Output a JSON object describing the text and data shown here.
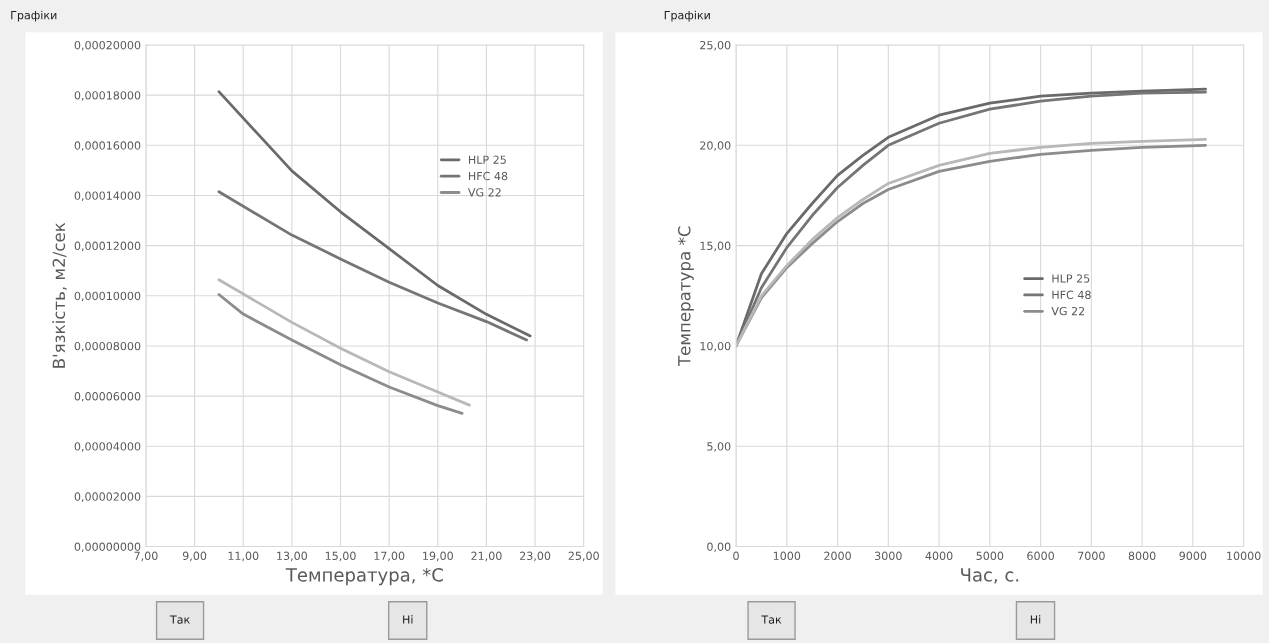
{
  "chart_data": [
    {
      "type": "line",
      "xlabel": "Температура, *С",
      "ylabel": "В'язкість, м2/сек",
      "annotations": [
        "Графіки",
        "Так",
        "Ні"
      ],
      "xlim": [
        7,
        25
      ],
      "xticks": [
        {
          "value": 7,
          "label": "7,00"
        },
        {
          "value": 9,
          "label": "9,00"
        },
        {
          "value": 11,
          "label": "11,00"
        },
        {
          "value": 13,
          "label": "13,00"
        },
        {
          "value": 15,
          "label": "15,00"
        },
        {
          "value": 17,
          "label": "17,00"
        },
        {
          "value": 19,
          "label": "19,00"
        },
        {
          "value": 21,
          "label": "21,00"
        },
        {
          "value": 23,
          "label": "23,00"
        },
        {
          "value": 25,
          "label": "25,00"
        }
      ],
      "ylim": [
        0,
        0.0002
      ],
      "yticks": [
        {
          "value": 0,
          "label": "0,00000000"
        },
        {
          "value": 2e-05,
          "label": "0,00002000"
        },
        {
          "value": 4e-05,
          "label": "0,00004000"
        },
        {
          "value": 6e-05,
          "label": "0,00006000"
        },
        {
          "value": 8e-05,
          "label": "0,00008000"
        },
        {
          "value": 0.0001,
          "label": "0,00010000"
        },
        {
          "value": 0.00012,
          "label": "0,00012000"
        },
        {
          "value": 0.00014,
          "label": "0,00014000"
        },
        {
          "value": 0.00016,
          "label": "0,00016000"
        },
        {
          "value": 0.00018,
          "label": "0,00018000"
        },
        {
          "value": 0.0002,
          "label": "0,00020000"
        }
      ],
      "grid": true,
      "legend": "top right",
      "marker": "none",
      "line_style": "solid",
      "series": [
        {
          "name": "HLP 25",
          "color": "#6a6a6a",
          "x": [
            10,
            13,
            15,
            17,
            19,
            21,
            22.8
          ],
          "values": [
            0.0001814,
            0.0001498,
            0.0001335,
            0.0001188,
            0.0001041,
            9.26e-05,
            8.4e-05
          ]
        },
        {
          "name": "HFC 48",
          "color": "#757575",
          "x": [
            10,
            13,
            15,
            17,
            19,
            21,
            22.65
          ],
          "values": [
            0.0001415,
            0.0001242,
            0.0001147,
            0.0001054,
            9.71e-05,
            8.97e-05,
            8.24e-05
          ]
        },
        {
          "name": "VG 22",
          "color": "#8c8c8c",
          "x": [
            10,
            11,
            13,
            15,
            17,
            19,
            20
          ],
          "values": [
            0.0001005,
            9.27e-05,
            8.24e-05,
            7.25e-05,
            6.36e-05,
            5.62e-05,
            5.31e-05
          ]
        },
        {
          "color": "#b8b8b8",
          "x": [
            10,
            13,
            15,
            17,
            19,
            20.3
          ],
          "values": [
            0.0001064,
            8.94e-05,
            7.91e-05,
            6.97e-05,
            6.16e-05,
            5.64e-05
          ]
        }
      ]
    },
    {
      "type": "line",
      "xlabel": "Час, с.",
      "ylabel": "Температура *С",
      "annotations": [
        "Графіки",
        "Так",
        "Ні"
      ],
      "xlim": [
        0,
        10000
      ],
      "xticks": [
        0,
        1000,
        2000,
        3000,
        4000,
        5000,
        6000,
        7000,
        8000,
        9000,
        10000
      ],
      "ylim": [
        0,
        25
      ],
      "yticks": [
        {
          "value": 0,
          "label": "0,00"
        },
        {
          "value": 5,
          "label": "5,00"
        },
        {
          "value": 10,
          "label": "10,00"
        },
        {
          "value": 15,
          "label": "15,00"
        },
        {
          "value": 20,
          "label": "20,00"
        },
        {
          "value": 25,
          "label": "25,00"
        }
      ],
      "grid": true,
      "legend": "right",
      "marker": "none",
      "line_style": "solid",
      "series": [
        {
          "name": "HLP 25",
          "color": "#6a6a6a",
          "x": [
            0,
            500,
            1000,
            1500,
            2000,
            2500,
            3000,
            4000,
            5000,
            6000,
            7000,
            8000,
            9250
          ],
          "values": [
            10,
            13.6,
            15.6,
            17.1,
            18.5,
            19.5,
            20.4,
            21.5,
            22.1,
            22.45,
            22.6,
            22.7,
            22.8
          ]
        },
        {
          "name": "HFC 48",
          "color": "#757575",
          "x": [
            0,
            500,
            1000,
            1500,
            2000,
            2500,
            3000,
            4000,
            5000,
            6000,
            7000,
            8000,
            9250
          ],
          "values": [
            10,
            12.9,
            14.9,
            16.5,
            17.9,
            19.0,
            20.0,
            21.1,
            21.8,
            22.2,
            22.45,
            22.6,
            22.65
          ]
        },
        {
          "name": "VG 22",
          "color": "#8c8c8c",
          "x": [
            0,
            500,
            1000,
            1500,
            2000,
            2500,
            3000,
            4000,
            5000,
            6000,
            7000,
            8000,
            9250
          ],
          "values": [
            10,
            12.4,
            13.9,
            15.1,
            16.2,
            17.1,
            17.8,
            18.7,
            19.2,
            19.55,
            19.75,
            19.9,
            20.0
          ]
        },
        {
          "color": "#b8b8b8",
          "x": [
            0,
            500,
            1000,
            1500,
            2000,
            2500,
            3000,
            4000,
            5000,
            6000,
            7000,
            8000,
            9250
          ],
          "values": [
            10,
            12.5,
            14.0,
            15.3,
            16.4,
            17.3,
            18.1,
            19.0,
            19.6,
            19.9,
            20.1,
            20.2,
            20.3
          ]
        }
      ]
    }
  ]
}
